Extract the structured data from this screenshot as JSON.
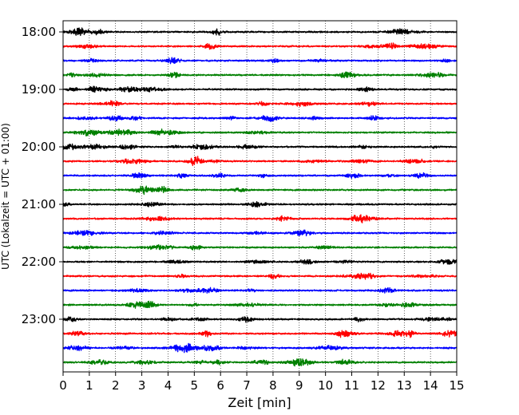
{
  "chart_data": {
    "type": "line",
    "title": "",
    "xlabel": "Zeit  [min]",
    "ylabel": "UTC (Lokalzeit = UTC + 01:00)",
    "xlim": [
      0,
      15
    ],
    "x_ticks": [
      0,
      1,
      2,
      3,
      4,
      5,
      6,
      7,
      8,
      9,
      10,
      11,
      12,
      13,
      14,
      15
    ],
    "x_tick_labels": [
      "0",
      "1",
      "2",
      "3",
      "4",
      "5",
      "6",
      "7",
      "8",
      "9",
      "10",
      "11",
      "12",
      "13",
      "14",
      "15"
    ],
    "y_tick_labels": [
      "18:00",
      "19:00",
      "20:00",
      "21:00",
      "22:00",
      "23:00"
    ],
    "vertical_grid": true,
    "grid_style": "dotted",
    "traces_per_hour": 4,
    "minutes_per_trace": 15,
    "trace_colors": [
      "#000000",
      "#ff0000",
      "#0000ff",
      "#008000"
    ],
    "traces": [
      {
        "start": "18:00",
        "color": "#000000"
      },
      {
        "start": "18:15",
        "color": "#ff0000"
      },
      {
        "start": "18:30",
        "color": "#0000ff"
      },
      {
        "start": "18:45",
        "color": "#008000"
      },
      {
        "start": "19:00",
        "color": "#000000"
      },
      {
        "start": "19:15",
        "color": "#ff0000"
      },
      {
        "start": "19:30",
        "color": "#0000ff"
      },
      {
        "start": "19:45",
        "color": "#008000"
      },
      {
        "start": "20:00",
        "color": "#000000"
      },
      {
        "start": "20:15",
        "color": "#ff0000"
      },
      {
        "start": "20:30",
        "color": "#0000ff"
      },
      {
        "start": "20:45",
        "color": "#008000"
      },
      {
        "start": "21:00",
        "color": "#000000"
      },
      {
        "start": "21:15",
        "color": "#ff0000"
      },
      {
        "start": "21:30",
        "color": "#0000ff"
      },
      {
        "start": "21:45",
        "color": "#008000"
      },
      {
        "start": "22:00",
        "color": "#000000"
      },
      {
        "start": "22:15",
        "color": "#ff0000"
      },
      {
        "start": "22:30",
        "color": "#0000ff"
      },
      {
        "start": "22:45",
        "color": "#008000"
      },
      {
        "start": "23:00",
        "color": "#000000"
      },
      {
        "start": "23:15",
        "color": "#ff0000"
      },
      {
        "start": "23:30",
        "color": "#0000ff"
      },
      {
        "start": "23:45",
        "color": "#008000"
      }
    ]
  }
}
